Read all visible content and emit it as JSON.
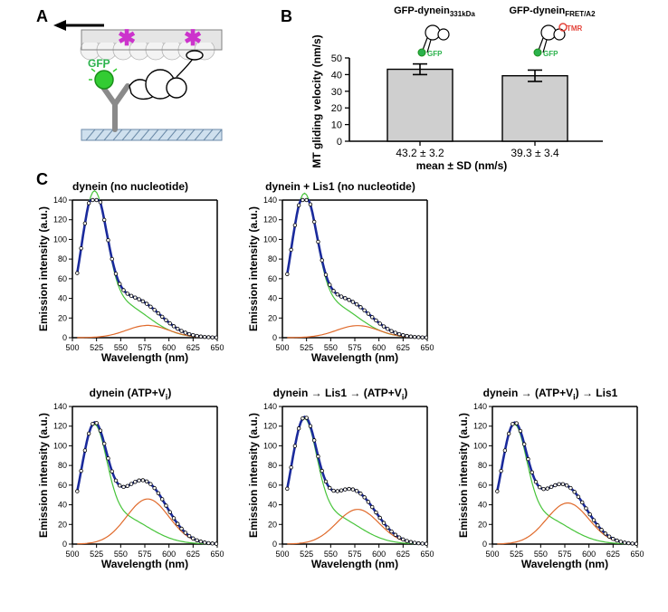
{
  "labels": {
    "A": "A",
    "B": "B",
    "C": "C"
  },
  "panelA": {
    "gfp": "GFP",
    "arrow_color": "#000000",
    "gfp_color": "#33cc33",
    "asterisk_color": "#cc33cc",
    "ground_hatch": "#6b8aa8"
  },
  "panelB": {
    "head1": "GFP-dynein",
    "head1_sub": "331kDa",
    "head2": "GFP-dynein",
    "head2_sub": "FRET/A2",
    "gfp_label": "GFP",
    "tmr_label": "TMR",
    "gfp_color": "#2bb24c",
    "tmr_color": "#e4433a",
    "yaxis": "MT gliding velocity (nm/s)",
    "xaxis": "mean ± SD (nm/s)",
    "ymax": 50,
    "ytick_step": 10,
    "bars": [
      {
        "value": 43.2,
        "sd": 3.2,
        "value_label": "43.2 ± 3.2"
      },
      {
        "value": 39.3,
        "sd": 3.4,
        "value_label": "39.3 ± 3.4"
      }
    ],
    "bar_fill": "#cfcfcf",
    "bar_stroke": "#000000"
  },
  "panelC": {
    "yaxis": "Emission intensity (a.u.)",
    "xaxis": "Wavelength (nm)",
    "ymax": 140,
    "ytick_step": 20,
    "xmin": 500,
    "xmax": 650,
    "xtick_step": 25,
    "curve_main_color": "#1a2a9c",
    "curve_g1_color": "#47c43a",
    "curve_g2_color": "#e06a2b",
    "point_color": "#000000",
    "charts": [
      {
        "title": "dynein (no nucleotide)",
        "peak_main": 125,
        "second_hump": 0.1
      },
      {
        "title": "dynein + Lis1 (no nucleotide)",
        "peak_main": 123,
        "second_hump": 0.1
      },
      {
        "title": "dynein (ATP+Vi)",
        "title_sub": true,
        "peak_main": 102,
        "second_hump": 0.45
      },
      {
        "title": "dynein → Lis1 → (ATP+Vi)",
        "title_sub": true,
        "peak_main": 107,
        "second_hump": 0.33
      },
      {
        "title": "dynein → (ATP+Vi) → Lis1",
        "title_sub": true,
        "peak_main": 102,
        "second_hump": 0.41
      }
    ]
  },
  "colors": {
    "bg": "#ffffff",
    "axis": "#000000"
  }
}
